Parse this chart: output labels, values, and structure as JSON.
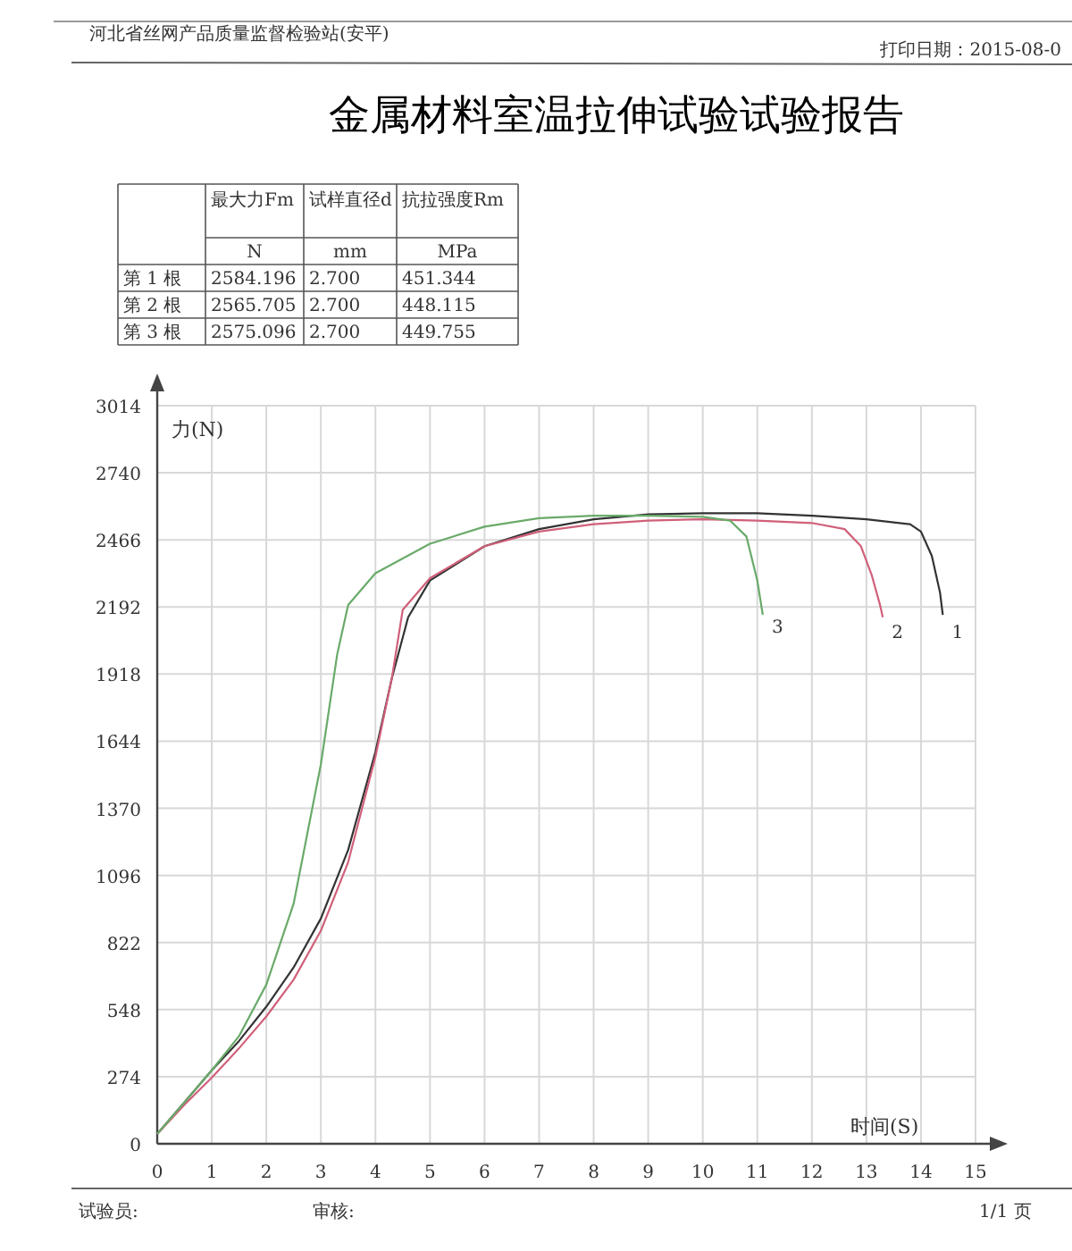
{
  "chart_data": {
    "type": "line",
    "title": "金属材料室温拉伸试验试验报告",
    "xlabel": "时间(S)",
    "ylabel": "力(N)",
    "xlim": [
      0,
      15
    ],
    "ylim": [
      0,
      3014
    ],
    "xticks": [
      0,
      1,
      2,
      3,
      4,
      5,
      6,
      7,
      8,
      9,
      10,
      11,
      12,
      13,
      14,
      15
    ],
    "yticks": [
      0,
      274,
      548,
      822,
      1096,
      1370,
      1644,
      1918,
      2192,
      2466,
      2740,
      3014
    ],
    "grid": true,
    "series": [
      {
        "color": "#333333",
        "x": [
          0,
          0.5,
          1,
          1.5,
          2,
          2.5,
          3,
          3.5,
          4,
          4.3,
          4.6,
          5,
          6,
          7,
          8,
          9,
          10,
          11,
          12,
          13,
          13.8,
          14,
          14.2,
          14.35,
          14.4
        ],
        "values": [
          40,
          170,
          300,
          420,
          560,
          720,
          920,
          1200,
          1600,
          1900,
          2150,
          2300,
          2440,
          2510,
          2550,
          2570,
          2575,
          2575,
          2565,
          2550,
          2530,
          2500,
          2400,
          2250,
          2160
        ]
      },
      {
        "color": "#d0607a",
        "x": [
          0,
          0.5,
          1,
          1.5,
          2,
          2.5,
          3,
          3.5,
          4,
          4.3,
          4.5,
          5,
          6,
          7,
          8,
          9,
          10,
          11,
          12,
          12.6,
          12.9,
          13.1,
          13.25,
          13.3
        ],
        "values": [
          40,
          160,
          270,
          390,
          520,
          670,
          870,
          1150,
          1580,
          1900,
          2180,
          2310,
          2440,
          2500,
          2530,
          2545,
          2550,
          2545,
          2535,
          2510,
          2440,
          2320,
          2200,
          2150
        ]
      },
      {
        "color": "#6aaa6a",
        "x": [
          0,
          0.5,
          1,
          1.5,
          2,
          2.5,
          3,
          3.3,
          3.5,
          4,
          5,
          6,
          7,
          8,
          9,
          10,
          10.5,
          10.8,
          11,
          11.1
        ],
        "values": [
          40,
          170,
          300,
          440,
          650,
          980,
          1550,
          2000,
          2200,
          2330,
          2450,
          2520,
          2555,
          2565,
          2565,
          2560,
          2545,
          2480,
          2300,
          2160
        ]
      }
    ],
    "annotations": [
      "河北省丝网产品质量监督检验站(安平)",
      "打印日期：2015-08-0",
      "最大力Fm",
      "试样直径d",
      "抗拉强度Rm",
      "N",
      "mm",
      "MPa",
      "第 1 根",
      "2584.196",
      "2.700",
      "451.344",
      "第 2 根",
      "2565.705",
      "2.700",
      "448.115",
      "第 3 根",
      "2575.096",
      "2.700",
      "449.755",
      "试验员:",
      "审核:",
      "1/1 页",
      {
        "text": "1",
        "x": 14.5,
        "y": 2140
      },
      {
        "text": "2",
        "x": 13.4,
        "y": 2140
      },
      {
        "text": "3",
        "x": 11.2,
        "y": 2160
      }
    ]
  }
}
